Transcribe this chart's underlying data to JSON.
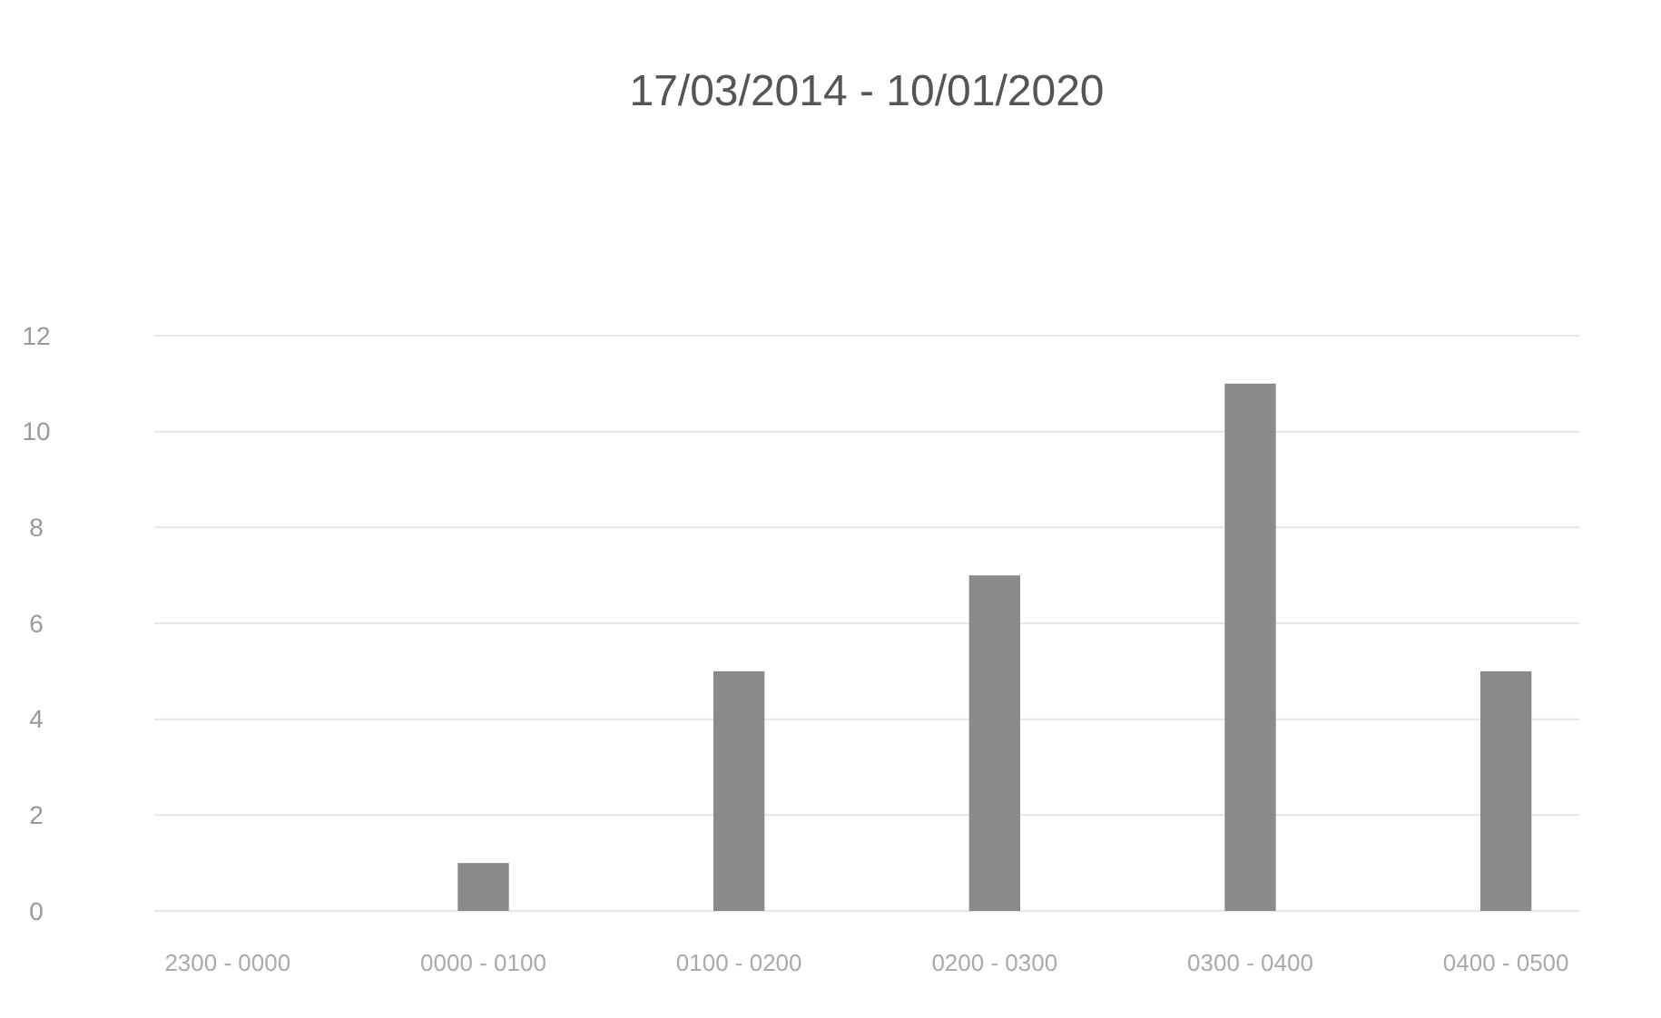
{
  "chart_data": {
    "type": "bar",
    "title": "17/03/2014 - 10/01/2020",
    "categories": [
      "2300 - 0000",
      "0000 - 0100",
      "0100 - 0200",
      "0200 - 0300",
      "0300 - 0400",
      "0400 - 0500"
    ],
    "values": [
      0,
      1,
      5,
      7,
      11,
      5
    ],
    "color": "#8a8a8a",
    "ylim": [
      0,
      12
    ],
    "yticks": [
      0,
      2,
      4,
      6,
      8,
      10,
      12
    ],
    "grid": "y"
  }
}
